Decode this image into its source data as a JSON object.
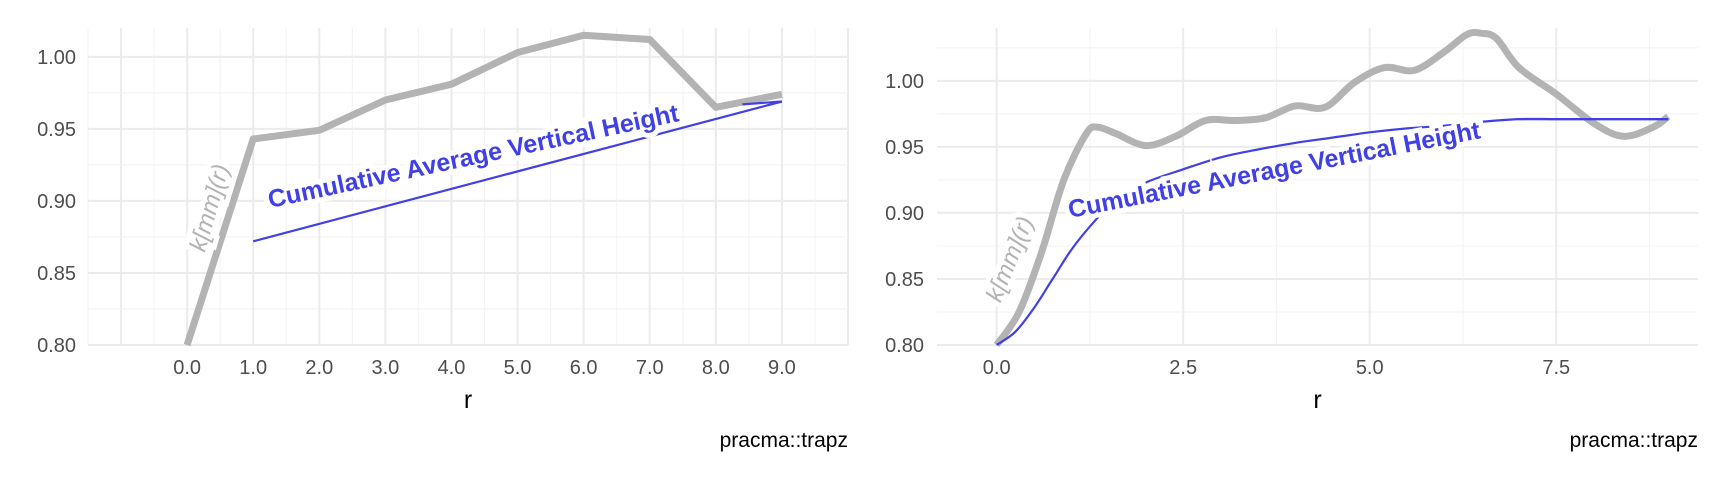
{
  "colors": {
    "k_line": "#b3b3b3",
    "avg_line": "#4040e6",
    "grid_major": "#ebebeb",
    "grid_minor": "#f4f4f4",
    "tick_text": "#4d4d4d"
  },
  "chart_data": [
    {
      "type": "line",
      "xlabel": "r",
      "caption": "pracma::trapz",
      "xlim": [
        -1.5,
        10
      ],
      "ylim": [
        0.8,
        1.02
      ],
      "x_ticks": [
        0,
        1,
        2,
        3,
        4,
        5,
        6,
        7,
        8,
        9
      ],
      "x_tick_labels": [
        "0.0",
        "1.0",
        "2.0",
        "3.0",
        "4.0",
        "5.0",
        "6.0",
        "7.0",
        "8.0",
        "9.0"
      ],
      "y_ticks": [
        0.8,
        0.85,
        0.9,
        0.95,
        1.0
      ],
      "y_tick_labels": [
        "0.80",
        "0.85",
        "0.90",
        "0.95",
        "1.00"
      ],
      "grid": true,
      "series": [
        {
          "label": "k[mm](r)",
          "x": [
            0,
            1,
            2,
            3,
            4,
            5,
            6,
            7,
            8,
            9
          ],
          "y": [
            0.8,
            0.943,
            0.949,
            0.97,
            0.981,
            1.003,
            1.015,
            1.012,
            0.965,
            0.974
          ]
        },
        {
          "label": "Cumulative Average Vertical Height",
          "x": [
            1,
            9
          ],
          "y": [
            0.872,
            0.969
          ]
        }
      ]
    },
    {
      "type": "line",
      "xlabel": "r",
      "caption": "pracma::trapz",
      "xlim": [
        -0.8,
        9.4
      ],
      "ylim": [
        0.8,
        1.04
      ],
      "x_ticks": [
        0,
        2.5,
        5,
        7.5
      ],
      "x_tick_labels": [
        "0.0",
        "2.5",
        "5.0",
        "7.5"
      ],
      "y_ticks": [
        0.8,
        0.85,
        0.9,
        0.95,
        1.0
      ],
      "y_tick_labels": [
        "0.80",
        "0.85",
        "0.90",
        "0.95",
        "1.00"
      ],
      "grid": true,
      "series": [
        {
          "label": "k[mm](r)",
          "x": [
            0,
            0.3,
            0.6,
            0.9,
            1.2,
            1.35,
            1.6,
            2.0,
            2.4,
            2.8,
            3.2,
            3.6,
            4.0,
            4.4,
            4.8,
            5.2,
            5.6,
            6.0,
            6.3,
            6.5,
            6.7,
            7.0,
            7.5,
            8.0,
            8.4,
            8.8,
            9.0
          ],
          "y": [
            0.8,
            0.825,
            0.87,
            0.925,
            0.96,
            0.965,
            0.96,
            0.951,
            0.958,
            0.97,
            0.97,
            0.972,
            0.981,
            0.98,
            0.999,
            1.01,
            1.008,
            1.022,
            1.035,
            1.036,
            1.032,
            1.01,
            0.99,
            0.968,
            0.958,
            0.965,
            0.973
          ]
        },
        {
          "label": "Cumulative Average Vertical Height",
          "x": [
            0,
            0.25,
            0.5,
            0.75,
            1.0,
            1.3,
            1.6,
            2.0,
            2.5,
            3.0,
            3.5,
            4.0,
            4.5,
            5.0,
            5.5,
            6.0,
            6.5,
            7.0,
            7.5,
            8.0,
            8.5,
            9.0
          ],
          "y": [
            0.8,
            0.81,
            0.828,
            0.85,
            0.872,
            0.893,
            0.91,
            0.923,
            0.933,
            0.942,
            0.948,
            0.953,
            0.957,
            0.961,
            0.964,
            0.966,
            0.969,
            0.971,
            0.971,
            0.971,
            0.971,
            0.971
          ]
        }
      ]
    }
  ]
}
